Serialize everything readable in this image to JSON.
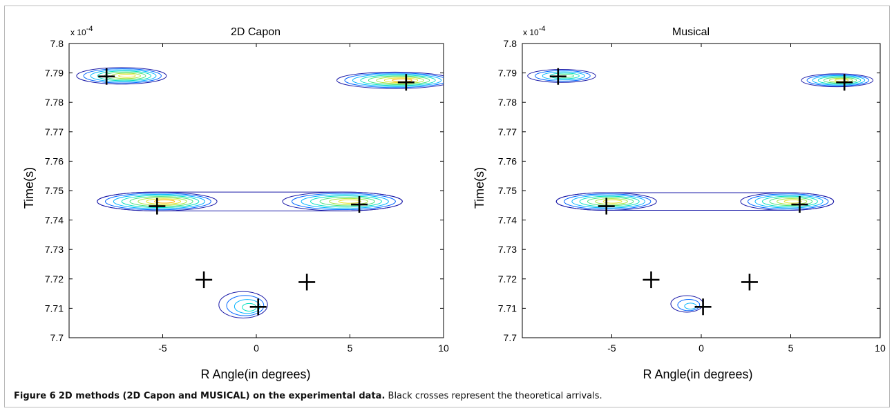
{
  "caption": {
    "label": "Figure 6",
    "title": "2D methods (2D Capon and MUSICAL) on the experimental data.",
    "text": "Black crosses represent the theoretical arrivals."
  },
  "colors": {
    "outer_contour": "#1a1aa8",
    "cross": "#000000"
  },
  "chart_data": [
    {
      "type": "contour",
      "title": "2D Capon",
      "xlabel": "R Angle(in degrees)",
      "ylabel": "Time(s)",
      "y_exponent_label": "x 10",
      "y_exponent": "-4",
      "xlim": [
        -10,
        10
      ],
      "ylim": [
        7.7,
        7.8
      ],
      "xticks": [
        "-5",
        "0",
        "5",
        "10"
      ],
      "yticks": [
        "7.7",
        "7.71",
        "7.72",
        "7.73",
        "7.74",
        "7.75",
        "7.76",
        "7.77",
        "7.78",
        "7.79",
        "7.8"
      ],
      "peaks": [
        {
          "x": -7.2,
          "y": 7.789,
          "rx": 2.4,
          "ry": 0.0028,
          "levels": 7
        },
        {
          "x": 7.4,
          "y": 7.7875,
          "rx": 3.1,
          "ry": 0.0028,
          "levels": 8
        },
        {
          "x": -5.3,
          "y": 7.7463,
          "rx": 3.2,
          "ry": 0.0032,
          "levels": 8
        },
        {
          "x": 4.6,
          "y": 7.7463,
          "rx": 3.2,
          "ry": 0.0032,
          "levels": 7
        },
        {
          "x": -0.7,
          "y": 7.7112,
          "rx": 1.3,
          "ry": 0.0045,
          "levels": 4
        }
      ],
      "crosses": [
        {
          "x": -8.0,
          "y": 7.7888
        },
        {
          "x": 8.0,
          "y": 7.7868
        },
        {
          "x": -5.3,
          "y": 7.7447
        },
        {
          "x": 5.5,
          "y": 7.7453
        },
        {
          "x": -2.8,
          "y": 7.7197
        },
        {
          "x": 2.7,
          "y": 7.7189
        },
        {
          "x": 0.1,
          "y": 7.7105
        }
      ]
    },
    {
      "type": "contour",
      "title": "Musical",
      "xlabel": "R Angle(in degrees)",
      "ylabel": "Time(s)",
      "y_exponent_label": "x 10",
      "y_exponent": "-4",
      "xlim": [
        -10,
        10
      ],
      "ylim": [
        7.7,
        7.8
      ],
      "xticks": [
        "-5",
        "0",
        "5",
        "10"
      ],
      "yticks": [
        "7.7",
        "7.71",
        "7.72",
        "7.73",
        "7.74",
        "7.75",
        "7.76",
        "7.77",
        "7.78",
        "7.79",
        "7.8"
      ],
      "peaks": [
        {
          "x": -7.8,
          "y": 7.789,
          "rx": 1.9,
          "ry": 0.0022,
          "levels": 5
        },
        {
          "x": 7.6,
          "y": 7.7875,
          "rx": 2.0,
          "ry": 0.0022,
          "levels": 7
        },
        {
          "x": -5.3,
          "y": 7.7463,
          "rx": 2.8,
          "ry": 0.003,
          "levels": 7
        },
        {
          "x": 4.8,
          "y": 7.7463,
          "rx": 2.6,
          "ry": 0.003,
          "levels": 7
        },
        {
          "x": -0.8,
          "y": 7.7115,
          "rx": 0.9,
          "ry": 0.0028,
          "levels": 3
        }
      ],
      "crosses": [
        {
          "x": -8.0,
          "y": 7.7888
        },
        {
          "x": 8.0,
          "y": 7.7868
        },
        {
          "x": -5.3,
          "y": 7.7447
        },
        {
          "x": 5.5,
          "y": 7.7453
        },
        {
          "x": -2.8,
          "y": 7.7197
        },
        {
          "x": 2.7,
          "y": 7.7189
        },
        {
          "x": 0.1,
          "y": 7.7105
        }
      ]
    }
  ]
}
